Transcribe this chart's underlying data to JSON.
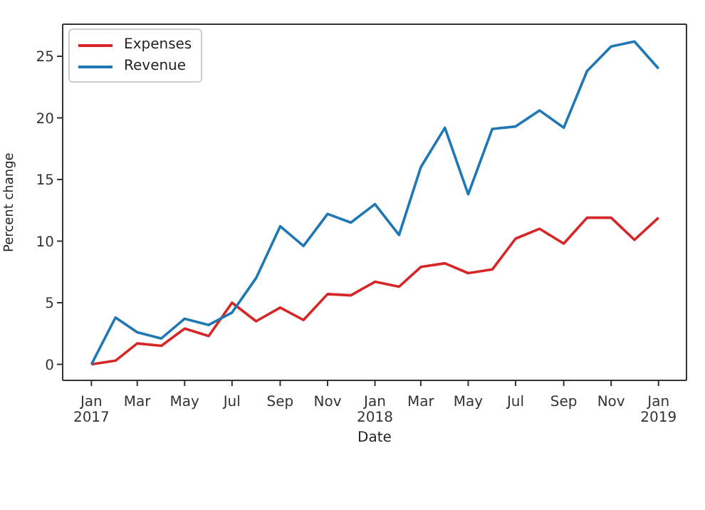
{
  "chart_data": {
    "type": "line",
    "xlabel": "Date",
    "ylabel": "Percent change",
    "x": [
      "2017-01",
      "2017-02",
      "2017-03",
      "2017-04",
      "2017-05",
      "2017-06",
      "2017-07",
      "2017-08",
      "2017-09",
      "2017-10",
      "2017-11",
      "2017-12",
      "2018-01",
      "2018-02",
      "2018-03",
      "2018-04",
      "2018-05",
      "2018-06",
      "2018-07",
      "2018-08",
      "2018-09",
      "2018-10",
      "2018-11",
      "2018-12",
      "2019-01"
    ],
    "series": [
      {
        "name": "Expenses",
        "color": "#d62728",
        "values": [
          0,
          0.3,
          1.7,
          1.5,
          2.9,
          2.3,
          5.0,
          3.5,
          4.6,
          3.6,
          5.7,
          5.6,
          6.7,
          6.3,
          7.9,
          8.2,
          7.4,
          7.7,
          10.2,
          11.0,
          9.8,
          11.9,
          11.9,
          10.1,
          11.9
        ]
      },
      {
        "name": "Revenue",
        "color": "#1f77b4",
        "values": [
          0,
          3.8,
          2.6,
          2.1,
          3.7,
          3.2,
          4.2,
          7.0,
          11.2,
          9.6,
          12.2,
          11.5,
          13.0,
          10.5,
          16.0,
          19.2,
          13.8,
          19.1,
          19.3,
          20.6,
          19.2,
          23.8,
          25.8,
          26.2,
          24.0
        ]
      }
    ],
    "xlim": [
      "2016-11-25",
      "2019-02-06"
    ],
    "xticks": [
      {
        "value": "2017-01",
        "label": "Jan 2017"
      },
      {
        "value": "2017-03",
        "label": "Mar"
      },
      {
        "value": "2017-05",
        "label": "May"
      },
      {
        "value": "2017-07",
        "label": "Jul"
      },
      {
        "value": "2017-09",
        "label": "Sep"
      },
      {
        "value": "2017-11",
        "label": "Nov"
      },
      {
        "value": "2018-01",
        "label": "Jan 2018"
      },
      {
        "value": "2018-03",
        "label": "Mar"
      },
      {
        "value": "2018-05",
        "label": "May"
      },
      {
        "value": "2018-07",
        "label": "Jul"
      },
      {
        "value": "2018-09",
        "label": "Sep"
      },
      {
        "value": "2018-11",
        "label": "Nov"
      },
      {
        "value": "2019-01",
        "label": "Jan 2019"
      }
    ],
    "ylim": [
      -1.3,
      27.6
    ],
    "yticks": [
      0,
      5,
      10,
      15,
      20,
      25
    ],
    "grid": false,
    "legend": "top left",
    "marker": "none",
    "line_style": "solid"
  }
}
